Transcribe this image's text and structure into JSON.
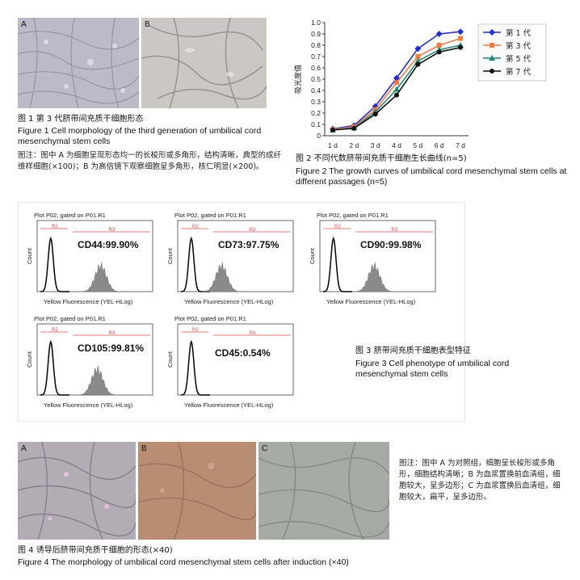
{
  "figure1": {
    "panel_a_label": "A",
    "panel_b_label": "B",
    "caption_cn": "图 1   第 3 代脐带间充质干细胞形态",
    "caption_en": "Figure 1   Cell morphology of the third generation of umbilical cord mesenchymal stem cells",
    "note": "图注：图中 A 为细胞呈现形态均一的长梭形或多角形，结构清晰，典型的成纤维样细胞(×100)；B 为高倍镜下观察细胞呈多角形，核仁明显(×200)。"
  },
  "figure2": {
    "caption_cn": "图 2   不同代数脐带间充质干细胞生长曲线(n=5)",
    "caption_en": "Figure 2   The growth curves of umbilical cord mesenchymal stem cells at different passages (n=5)"
  },
  "chart_data": {
    "type": "line",
    "ylabel": "吸光度值",
    "ylim": [
      0,
      1.0
    ],
    "yticks": [
      "0",
      "0.1",
      "0.2",
      "0.3",
      "0.4",
      "0.5",
      "0.6",
      "0.7",
      "0.8",
      "0.9",
      "1.0"
    ],
    "categories": [
      "1 d",
      "2 d",
      "3 d",
      "4 d",
      "5 d",
      "6 d",
      "7 d"
    ],
    "legend_position": "right",
    "series": [
      {
        "name": "第 1 代",
        "color": "#1f2fe0",
        "marker": "diamond",
        "values": [
          0.06,
          0.09,
          0.26,
          0.51,
          0.77,
          0.9,
          0.92
        ]
      },
      {
        "name": "第 3 代",
        "color": "#ff7a3a",
        "marker": "square",
        "values": [
          0.055,
          0.08,
          0.23,
          0.47,
          0.7,
          0.8,
          0.86
        ]
      },
      {
        "name": "第 5 代",
        "color": "#1e8a78",
        "marker": "triangle",
        "values": [
          0.05,
          0.07,
          0.21,
          0.41,
          0.66,
          0.76,
          0.8
        ]
      },
      {
        "name": "第 7 代",
        "color": "#111111",
        "marker": "circle",
        "values": [
          0.05,
          0.065,
          0.19,
          0.36,
          0.63,
          0.74,
          0.78
        ]
      }
    ]
  },
  "figure3": {
    "panels": [
      {
        "title": "Plot P02, gated on P01.R1",
        "label": "CD44:99.90%"
      },
      {
        "title": "Plot P02, gated on P01.R1",
        "label": "CD73:97.75%"
      },
      {
        "title": "Plot P02, gated on P01.R1",
        "label": "CD90:99.98%"
      },
      {
        "title": "Plot P02, gated on P01.R1",
        "label": "CD105:99.81%"
      },
      {
        "title": "Plot P02, gated on P01.R1",
        "label": "CD45:0.54%"
      }
    ],
    "ylabel": "Count",
    "xlabel": "Yellow Fluorescence (YEL-HLog)",
    "region_r2": "R2",
    "region_r3": "R3",
    "caption_cn": "图 3   脐带间充质干细胞表型特征",
    "caption_en": "Figure 3   Cell phenotype of umbilical cord mesenchymal stem cells"
  },
  "figure4": {
    "panel_a_label": "A",
    "panel_b_label": "B",
    "panel_c_label": "C",
    "note": "图注：图中 A 为对照组，细胞呈长梭形或多角形，细胞结构清晰；B 为血浆置换前血清组，细胞较大，呈多边形；C 为血浆置换后血清组，细胞较大，扁平，呈多边形。",
    "caption_cn": "图 4   诱导后脐带间充质干细胞的形态(×40)",
    "caption_en": "Figure 4   The morphology of umbilical cord mesenchymal stem cells after induction (×40)"
  }
}
